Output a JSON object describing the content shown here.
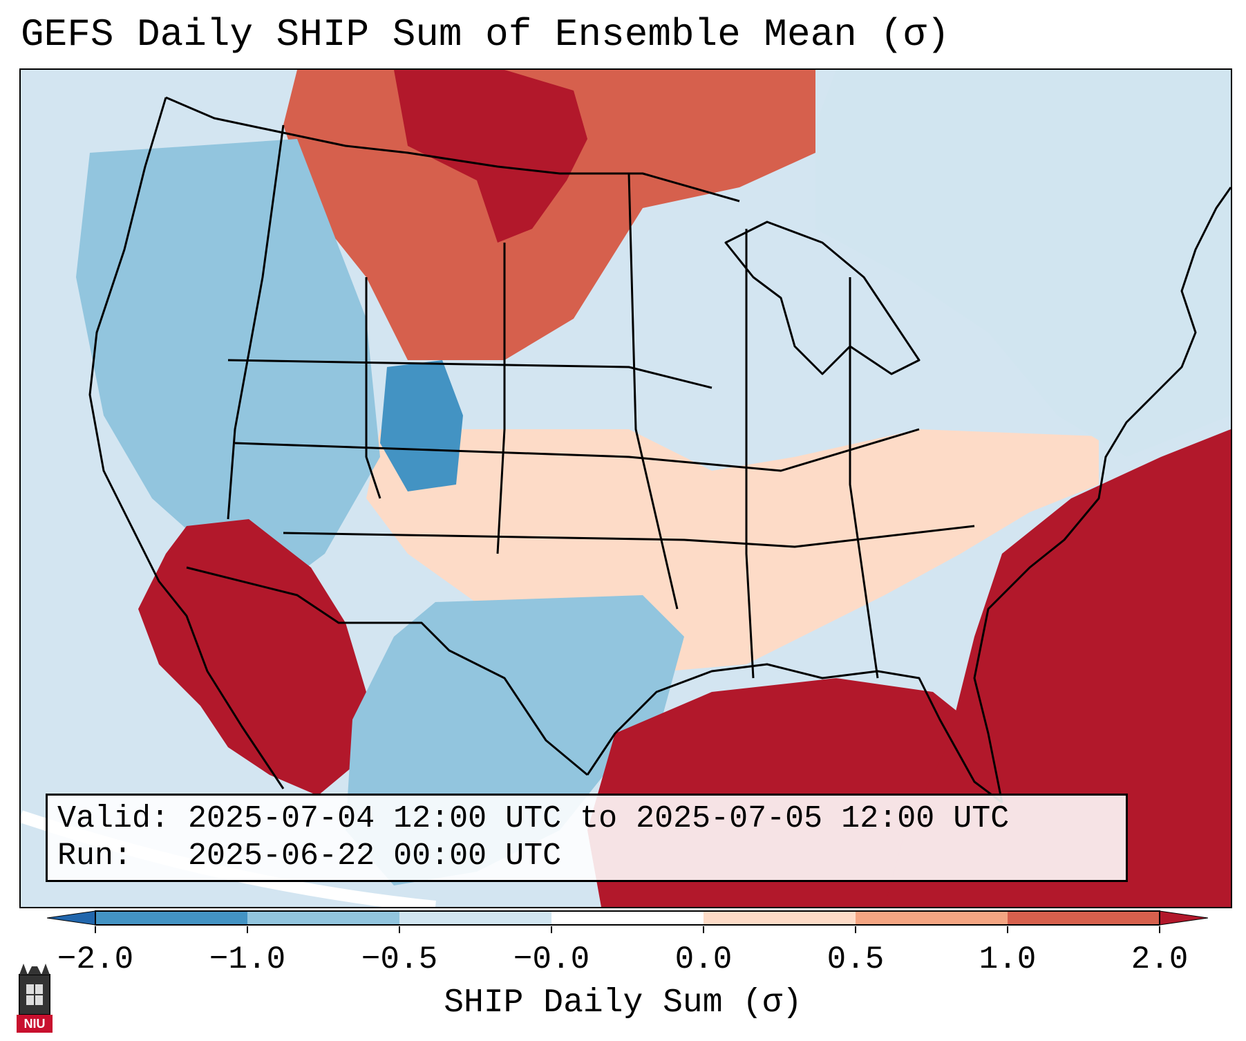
{
  "title": "GEFS Daily SHIP Sum of Ensemble Mean (σ)",
  "info": {
    "valid_line": "Valid: 2025-07-04 12:00 UTC to 2025-07-05 12:00 UTC",
    "run_line": "Run:   2025-06-22 00:00 UTC"
  },
  "colorbar": {
    "label": "SHIP Daily Sum (σ)",
    "ticks": [
      "−2.0",
      "−1.0",
      "−0.5",
      "−0.0",
      "0.0",
      "0.5",
      "1.0",
      "2.0"
    ],
    "colors": [
      "#4393c3",
      "#92c5de",
      "#d1e5f0",
      "#ffffff",
      "#fddbc7",
      "#f4a582",
      "#d6604d",
      "#b2182b"
    ],
    "extend_low_color": "#2166ac",
    "extend_high_color": "#b2182b"
  },
  "map": {
    "projection": "Lambert conformal, CONUS",
    "background_value_color": "#d3e5f1",
    "regions": [
      {
        "name": "northern-plains-maximum",
        "category": "2.0",
        "color": "#b2182b"
      },
      {
        "name": "northern-rockies-high",
        "category": "1.0",
        "color": "#d6604d"
      },
      {
        "name": "southwest-maximum",
        "category": "2.0",
        "color": "#b2182b"
      },
      {
        "name": "colorado-minimum",
        "category": "-1.0",
        "color": "#4393c3"
      },
      {
        "name": "great-basin-low",
        "category": "-0.5",
        "color": "#92c5de"
      },
      {
        "name": "central-plains-slight",
        "category": "0.0",
        "color": "#fddbc7"
      },
      {
        "name": "texas-low",
        "category": "-0.5",
        "color": "#92c5de"
      },
      {
        "name": "gulf-of-mexico-maximum",
        "category": "2.0",
        "color": "#b2182b"
      },
      {
        "name": "atlantic-maximum",
        "category": "2.0",
        "color": "#b2182b"
      },
      {
        "name": "northeast-neutral",
        "category": "-0.0",
        "color": "#d1e5f0"
      }
    ]
  },
  "logo": {
    "text": "NIU",
    "color": "#c8102e"
  }
}
